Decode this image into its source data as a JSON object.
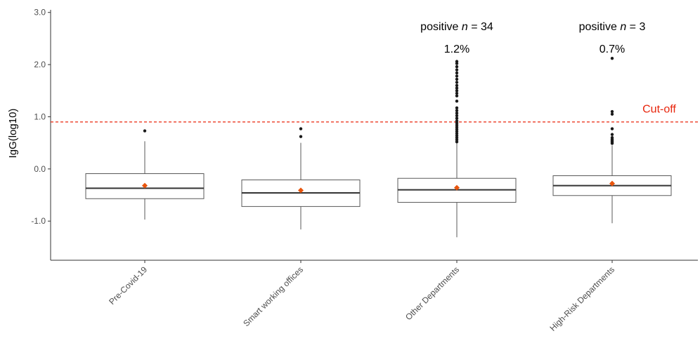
{
  "chart_data": {
    "type": "box",
    "title": "",
    "xlabel": "",
    "ylabel": "IgG(log10)",
    "ylim": [
      -1.75,
      3.05
    ],
    "yticks": [
      {
        "value": 3.0,
        "label": "3.0"
      },
      {
        "value": 2.0,
        "label": "2.0"
      },
      {
        "value": 1.0,
        "label": "1.0"
      },
      {
        "value": 0.0,
        "label": "0.0"
      },
      {
        "value": -1.0,
        "label": "-1.0"
      }
    ],
    "grid": false,
    "categories": [
      "Pre-Covid-19",
      "Smart working offices",
      "Other Departments",
      "High-Risk Departments"
    ],
    "boxes": [
      {
        "category": "Pre-Covid-19",
        "whisker_low": -0.97,
        "q1": -0.57,
        "median": -0.37,
        "q3": -0.09,
        "whisker_high": 0.53,
        "mean": -0.32,
        "outliers": [
          0.73
        ]
      },
      {
        "category": "Smart working offices",
        "whisker_low": -1.16,
        "q1": -0.72,
        "median": -0.46,
        "q3": -0.21,
        "whisker_high": 0.5,
        "mean": -0.41,
        "outliers": [
          0.62,
          0.77
        ]
      },
      {
        "category": "Other Departments",
        "whisker_low": -1.31,
        "q1": -0.64,
        "median": -0.4,
        "q3": -0.18,
        "whisker_high": 0.5,
        "mean": -0.36,
        "outliers": [
          0.52,
          0.56,
          0.6,
          0.64,
          0.68,
          0.72,
          0.76,
          0.8,
          0.84,
          0.88,
          0.92,
          0.97,
          1.02,
          1.07,
          1.12,
          1.17,
          1.3,
          1.4,
          1.45,
          1.5,
          1.55,
          1.6,
          1.66,
          1.72,
          1.78,
          1.84,
          1.9,
          1.96,
          2.02,
          2.06
        ]
      },
      {
        "category": "High-Risk Departments",
        "whisker_low": -1.04,
        "q1": -0.51,
        "median": -0.32,
        "q3": -0.13,
        "whisker_high": 0.45,
        "mean": -0.28,
        "outliers": [
          0.49,
          0.51,
          0.53,
          0.55,
          0.57,
          0.6,
          0.66,
          0.77,
          1.05,
          1.1,
          2.12
        ]
      }
    ],
    "cutoff": {
      "value": 0.9,
      "label": "Cut-off",
      "color": "#e8260d"
    },
    "annotations": [
      {
        "category": "Other Departments",
        "prefix": "positive ",
        "n_symbol": "n",
        "count_text": " = 34",
        "percent": "1.2%"
      },
      {
        "category": "High-Risk Departments",
        "prefix": "positive ",
        "n_symbol": "n",
        "count_text": " = 3",
        "percent": "0.7%"
      }
    ],
    "colors": {
      "box_stroke": "#595959",
      "median": "#333333",
      "whisker": "#595959",
      "outlier": "#1a1a1a",
      "mean": "#e8550d",
      "axis": "#333333"
    }
  }
}
